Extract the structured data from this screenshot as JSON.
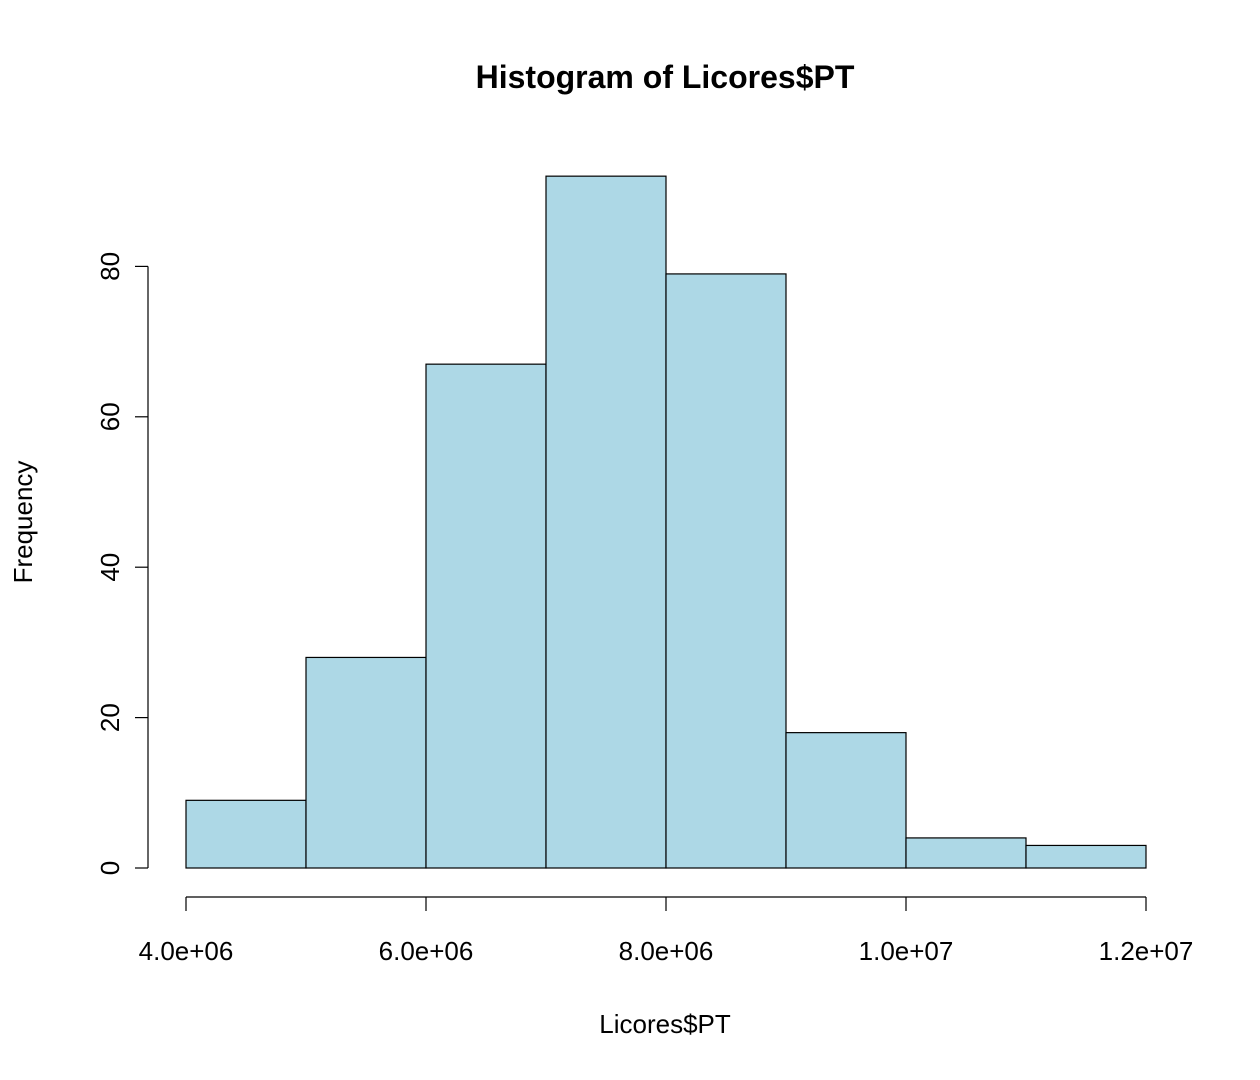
{
  "chart_data": {
    "type": "bar",
    "subtype": "histogram",
    "title": "Histogram of Licores$PT",
    "xlabel": "Licores$PT",
    "ylabel": "Frequency",
    "bins": [
      {
        "start": 4000000,
        "end": 5000000,
        "count": 9
      },
      {
        "start": 5000000,
        "end": 6000000,
        "count": 28
      },
      {
        "start": 6000000,
        "end": 7000000,
        "count": 67
      },
      {
        "start": 7000000,
        "end": 8000000,
        "count": 92
      },
      {
        "start": 8000000,
        "end": 9000000,
        "count": 79
      },
      {
        "start": 9000000,
        "end": 10000000,
        "count": 18
      },
      {
        "start": 10000000,
        "end": 11000000,
        "count": 4
      },
      {
        "start": 11000000,
        "end": 12000000,
        "count": 3
      }
    ],
    "xlim": [
      4000000,
      12000000
    ],
    "ylim": [
      0,
      92
    ],
    "x_ticks": [
      {
        "value": 4000000,
        "label": "4.0e+06"
      },
      {
        "value": 6000000,
        "label": "6.0e+06"
      },
      {
        "value": 8000000,
        "label": "8.0e+06"
      },
      {
        "value": 10000000,
        "label": "1.0e+07"
      },
      {
        "value": 12000000,
        "label": "1.2e+07"
      }
    ],
    "y_ticks": [
      {
        "value": 0,
        "label": "0"
      },
      {
        "value": 20,
        "label": "20"
      },
      {
        "value": 40,
        "label": "40"
      },
      {
        "value": 60,
        "label": "60"
      },
      {
        "value": 80,
        "label": "80"
      }
    ],
    "bar_color": "#add8e6",
    "grid": false,
    "legend": "none"
  }
}
